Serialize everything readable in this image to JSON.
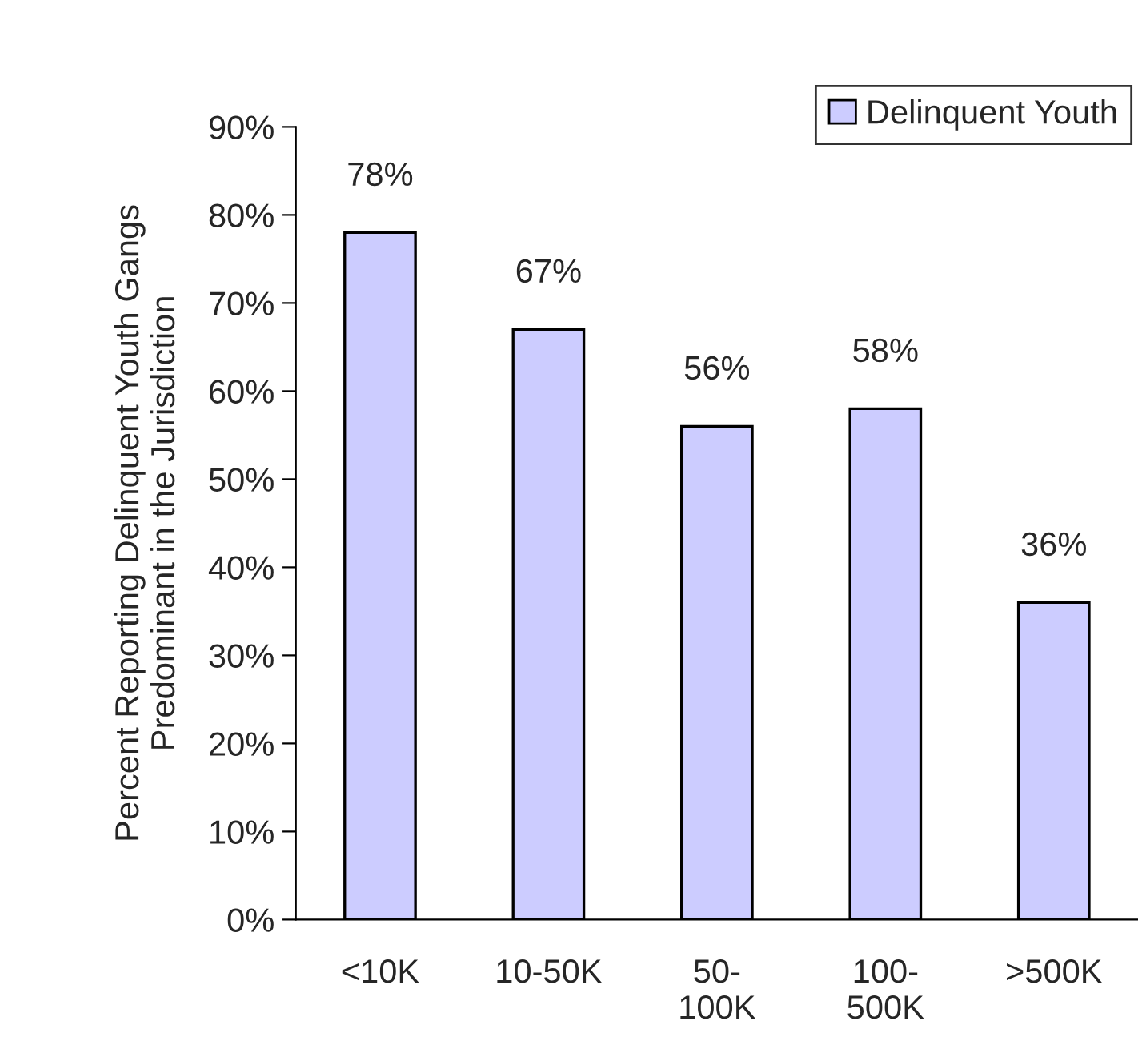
{
  "chart_data": {
    "type": "bar",
    "ylabel": "Percent Reporting Delinquent Youth Gangs\nPredominant in the Jurisdiction",
    "categories": [
      "<10K",
      "10-50K",
      "50-\n100K",
      "100-\n500K",
      ">500K"
    ],
    "series": [
      {
        "name": "Delinquent Youth",
        "color": "#ccccff",
        "values": [
          78,
          67,
          56,
          58,
          36
        ]
      }
    ],
    "value_labels": [
      "78%",
      "67%",
      "56%",
      "58%",
      "36%"
    ],
    "ylim": [
      0,
      90
    ],
    "yticks": [
      {
        "value": 0,
        "label": "0%"
      },
      {
        "value": 10,
        "label": "10%"
      },
      {
        "value": 20,
        "label": "20%"
      },
      {
        "value": 30,
        "label": "30%"
      },
      {
        "value": 40,
        "label": "40%"
      },
      {
        "value": 50,
        "label": "50%"
      },
      {
        "value": 60,
        "label": "60%"
      },
      {
        "value": 70,
        "label": "70%"
      },
      {
        "value": 80,
        "label": "80%"
      },
      {
        "value": 90,
        "label": "90%"
      }
    ],
    "grid": false,
    "legend": "top right"
  }
}
